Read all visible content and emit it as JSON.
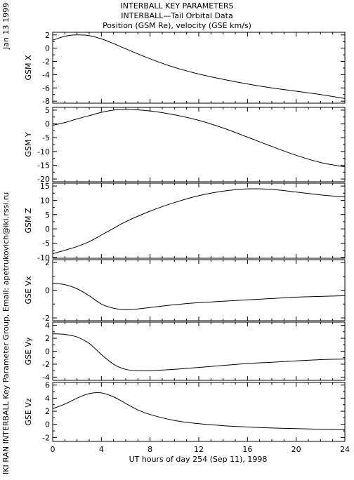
{
  "header": {
    "title_line1": "INTERBALL KEY PARAMETERS",
    "title_line2": "INTERBALL—Tail Orbital Data",
    "title_line3": "Position (GSM Re), velocity (GSE km/s)"
  },
  "sidebar": {
    "date": "Jan 13 1999",
    "credit": "IKI RAN INTERBALL Key Parameter Group, Email: apetrukovich@iki.rssi.ru"
  },
  "xaxis": {
    "label": "UT hours of day 254 (Sep 11), 1998",
    "range": [
      0,
      24
    ],
    "ticks": [
      0,
      4,
      8,
      12,
      16,
      20,
      24
    ]
  },
  "chart_data": [
    {
      "type": "line",
      "ylabel": "GSM X",
      "ylim": [
        -8.3,
        2.4
      ],
      "yticks": [
        2,
        0,
        -2,
        -4,
        -6,
        -8
      ],
      "x": [
        0,
        1,
        2,
        3,
        4,
        5,
        6,
        8,
        10,
        12,
        14,
        16,
        18,
        20,
        22,
        24
      ],
      "values": [
        1.2,
        1.8,
        2.0,
        1.9,
        1.4,
        0.7,
        -0.1,
        -1.6,
        -2.9,
        -3.9,
        -4.7,
        -5.4,
        -6.0,
        -6.5,
        -7.0,
        -7.6
      ]
    },
    {
      "type": "line",
      "ylabel": "GSM Y",
      "ylim": [
        -21,
        6
      ],
      "yticks": [
        5,
        0,
        -5,
        -10,
        -15,
        -20
      ],
      "x": [
        0,
        1,
        2,
        3,
        4,
        5,
        6,
        8,
        10,
        12,
        14,
        16,
        18,
        20,
        22,
        24
      ],
      "values": [
        -0.5,
        0.5,
        1.8,
        3.0,
        4.2,
        5.0,
        5.3,
        4.7,
        3.3,
        1.3,
        -1.5,
        -4.8,
        -8.2,
        -11.4,
        -14.0,
        -15.6
      ]
    },
    {
      "type": "line",
      "ylabel": "GSM Z",
      "ylim": [
        -10.3,
        16
      ],
      "yticks": [
        15,
        10,
        5,
        0,
        -5,
        -10
      ],
      "x": [
        0,
        1,
        2,
        3,
        4,
        5,
        6,
        8,
        10,
        12,
        14,
        16,
        18,
        20,
        22,
        24
      ],
      "values": [
        -8.7,
        -7.5,
        -6.2,
        -4.5,
        -2.2,
        0.2,
        2.5,
        6.2,
        9.2,
        11.6,
        13.2,
        14.0,
        13.8,
        12.9,
        11.9,
        11.2
      ]
    },
    {
      "type": "line",
      "ylabel": "GSE Vx",
      "ylim": [
        -2.2,
        2.2
      ],
      "yticks": [
        2,
        0,
        -2
      ],
      "x": [
        0,
        1,
        2,
        3,
        4,
        5,
        6,
        7,
        8,
        10,
        12,
        14,
        16,
        18,
        20,
        22,
        24
      ],
      "values": [
        0.5,
        0.4,
        0.1,
        -0.4,
        -1.0,
        -1.3,
        -1.4,
        -1.35,
        -1.25,
        -1.05,
        -0.9,
        -0.8,
        -0.7,
        -0.6,
        -0.5,
        -0.45,
        -0.4
      ]
    },
    {
      "type": "line",
      "ylabel": "GSE Vy",
      "ylim": [
        -4.5,
        4.5
      ],
      "yticks": [
        4,
        2,
        0,
        -2,
        -4
      ],
      "x": [
        0,
        1,
        2,
        3,
        4,
        5,
        6,
        7,
        8,
        10,
        12,
        14,
        16,
        18,
        20,
        22,
        24
      ],
      "values": [
        2.7,
        2.6,
        2.2,
        1.2,
        -0.5,
        -2.0,
        -2.8,
        -3.0,
        -3.0,
        -2.8,
        -2.5,
        -2.2,
        -1.9,
        -1.7,
        -1.5,
        -1.3,
        -1.2
      ]
    },
    {
      "type": "line",
      "ylabel": "GSE Vz",
      "ylim": [
        -2.6,
        6.4
      ],
      "yticks": [
        6,
        4,
        2,
        0,
        -2
      ],
      "x": [
        0,
        1,
        2,
        3,
        4,
        5,
        6,
        7,
        8,
        10,
        12,
        14,
        16,
        18,
        20,
        22,
        24
      ],
      "values": [
        2.4,
        3.1,
        4.0,
        4.7,
        4.8,
        4.2,
        3.2,
        2.2,
        1.5,
        0.6,
        0.1,
        -0.2,
        -0.4,
        -0.55,
        -0.65,
        -0.75,
        -0.8
      ]
    }
  ]
}
